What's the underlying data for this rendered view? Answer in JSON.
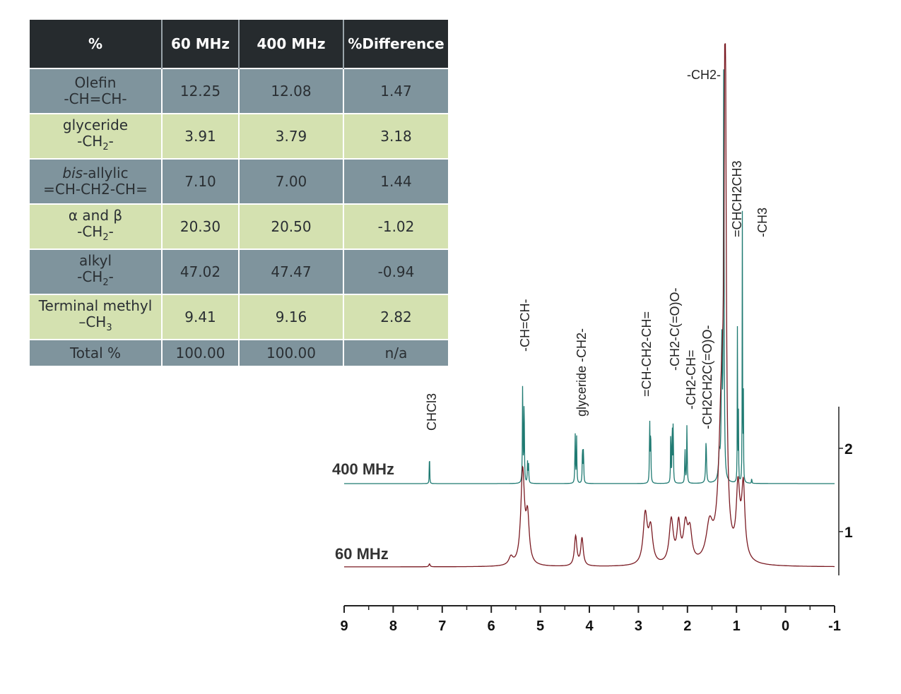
{
  "table": {
    "headers": [
      "%",
      "60 MHz",
      "400 MHz",
      "%Difference"
    ],
    "rows": [
      {
        "label1": "Olefin",
        "label1_suffix": "",
        "label2": "-CH=CH-",
        "label2_sub": "",
        "label2_end": "",
        "v60": "12.25",
        "v400": "12.08",
        "diff": "1.47",
        "shade": "dark"
      },
      {
        "label1": "glyceride",
        "label1_suffix": "",
        "label2": "-CH",
        "label2_sub": "2",
        "label2_end": "-",
        "v60": "3.91",
        "v400": "3.79",
        "diff": "3.18",
        "shade": "light"
      },
      {
        "label1": "bis-",
        "label1_suffix": "allylic",
        "label2": "=CH-CH2-CH=",
        "label2_sub": "",
        "label2_end": "",
        "v60": "7.10",
        "v400": "7.00",
        "diff": "1.44",
        "shade": "dark"
      },
      {
        "label1": "α  and  β",
        "label1_suffix": "",
        "label2": "-CH",
        "label2_sub": "2",
        "label2_end": "-",
        "v60": "20.30",
        "v400": "20.50",
        "diff": "-1.02",
        "shade": "light"
      },
      {
        "label1": "alkyl",
        "label1_suffix": "",
        "label2": "-CH",
        "label2_sub": "2",
        "label2_end": "-",
        "v60": "47.02",
        "v400": "47.47",
        "diff": "-0.94",
        "shade": "dark"
      },
      {
        "label1": "Terminal methyl",
        "label1_suffix": "",
        "label2": "–CH",
        "label2_sub": "3",
        "label2_end": "",
        "v60": "9.41",
        "v400": "9.16",
        "diff": "2.82",
        "shade": "light"
      }
    ],
    "total": {
      "label": "Total %",
      "v60": "100.00",
      "v400": "100.00",
      "diff": "n/a"
    }
  },
  "chart_data": {
    "type": "line",
    "x_label": "",
    "x_reversed": true,
    "xlim": [
      9,
      -1
    ],
    "x_ticks": [
      "9",
      "8",
      "7",
      "6",
      "5",
      "4",
      "3",
      "2",
      "1",
      "0",
      "-1"
    ],
    "right_axis_ticks": [
      "2",
      "1"
    ],
    "colors": {
      "400 MHz": "#1f7a72",
      "60 MHz": "#7a1a22",
      "axis": "#222222"
    },
    "series": [
      {
        "name": "400 MHz",
        "baseline": 0,
        "peaks": [
          {
            "x": 7.26,
            "h": 0.47,
            "w": 0.004
          },
          {
            "x": 5.36,
            "h": 1.2,
            "w": 0.006
          },
          {
            "x": 5.33,
            "h": 1.05,
            "w": 0.006
          },
          {
            "x": 5.26,
            "h": 0.25,
            "w": 0.006
          },
          {
            "x": 5.24,
            "h": 0.22,
            "w": 0.006
          },
          {
            "x": 4.29,
            "h": 0.62,
            "w": 0.006
          },
          {
            "x": 4.26,
            "h": 0.55,
            "w": 0.006
          },
          {
            "x": 4.14,
            "h": 0.45,
            "w": 0.006
          },
          {
            "x": 4.12,
            "h": 0.42,
            "w": 0.006
          },
          {
            "x": 2.77,
            "h": 0.75,
            "w": 0.006
          },
          {
            "x": 2.75,
            "h": 0.65,
            "w": 0.006
          },
          {
            "x": 2.34,
            "h": 0.72,
            "w": 0.005
          },
          {
            "x": 2.31,
            "h": 0.8,
            "w": 0.005
          },
          {
            "x": 2.29,
            "h": 0.8,
            "w": 0.005
          },
          {
            "x": 2.05,
            "h": 0.45,
            "w": 0.006
          },
          {
            "x": 2.01,
            "h": 0.72,
            "w": 0.006
          },
          {
            "x": 1.62,
            "h": 0.5,
            "w": 0.01
          },
          {
            "x": 1.35,
            "h": 0.3,
            "w": 0.02
          },
          {
            "x": 1.26,
            "h": 5.1,
            "w": 0.008
          },
          {
            "x": 1.3,
            "h": 1.6,
            "w": 0.012
          },
          {
            "x": 0.98,
            "h": 2.0,
            "w": 0.004
          },
          {
            "x": 0.96,
            "h": 0.8,
            "w": 0.004
          },
          {
            "x": 0.88,
            "h": 3.2,
            "w": 0.004
          },
          {
            "x": 0.86,
            "h": 1.1,
            "w": 0.004
          },
          {
            "x": 0.69,
            "h": 0.08,
            "w": 0.004
          }
        ]
      },
      {
        "name": "60 MHz",
        "baseline": 0,
        "peaks": [
          {
            "x": 7.26,
            "h": 0.03,
            "w": 0.015
          },
          {
            "x": 5.6,
            "h": 0.08,
            "w": 0.05
          },
          {
            "x": 5.36,
            "h": 0.95,
            "w": 0.045
          },
          {
            "x": 5.26,
            "h": 0.45,
            "w": 0.04
          },
          {
            "x": 4.28,
            "h": 0.3,
            "w": 0.03
          },
          {
            "x": 4.15,
            "h": 0.28,
            "w": 0.03
          },
          {
            "x": 2.86,
            "h": 0.5,
            "w": 0.05
          },
          {
            "x": 2.75,
            "h": 0.35,
            "w": 0.05
          },
          {
            "x": 2.33,
            "h": 0.44,
            "w": 0.05
          },
          {
            "x": 2.18,
            "h": 0.38,
            "w": 0.04
          },
          {
            "x": 2.04,
            "h": 0.36,
            "w": 0.05
          },
          {
            "x": 1.95,
            "h": 0.3,
            "w": 0.05
          },
          {
            "x": 1.55,
            "h": 0.35,
            "w": 0.08
          },
          {
            "x": 1.3,
            "h": 1.6,
            "w": 0.07
          },
          {
            "x": 1.23,
            "h": 5.3,
            "w": 0.022
          },
          {
            "x": 0.97,
            "h": 0.62,
            "w": 0.04
          },
          {
            "x": 0.86,
            "h": 0.6,
            "w": 0.035
          },
          {
            "x": 0.9,
            "h": 0.2,
            "w": 0.09
          }
        ]
      }
    ],
    "annotations": [
      {
        "text": "CHCl3",
        "x": 7.26
      },
      {
        "text": "-CH=CH-",
        "x": 5.35
      },
      {
        "text": "glyceride -CH2-",
        "x": 4.2
      },
      {
        "text": "=CH-CH2-CH=",
        "x": 2.8
      },
      {
        "text": "-CH2-C(=O)O-",
        "x": 2.3
      },
      {
        "text": "-CH2-CH=",
        "x": 2.0
      },
      {
        "text": "-CH2CH2C(=O)O-",
        "x": 1.6
      },
      {
        "text": "-CH2-",
        "x": 1.3
      },
      {
        "text": "=CHCH2CH3",
        "x": 0.96
      },
      {
        "text": "-CH3",
        "x": 0.6
      }
    ]
  }
}
